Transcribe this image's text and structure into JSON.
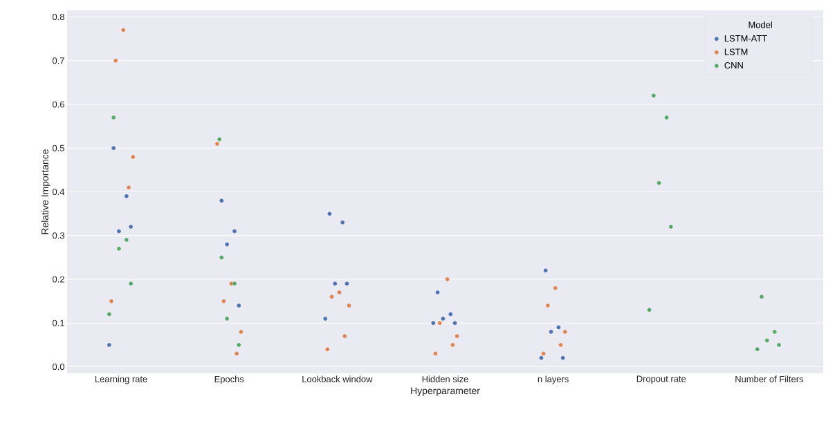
{
  "chart_data": {
    "type": "scatter",
    "xlabel": "Hyperparameter",
    "ylabel": "Relative Importance",
    "legend_title": "Model",
    "categories": [
      "Learning rate",
      "Epochs",
      "Lookback window",
      "Hidden size",
      "n layers",
      "Dropout rate",
      "Number of Filters"
    ],
    "ylim": [
      -0.015,
      0.815
    ],
    "yticks": [
      {
        "value": 0,
        "label": "0.0"
      },
      0.1,
      0.2,
      0.3,
      0.4,
      0.5,
      0.6,
      0.7,
      0.8
    ],
    "grid": "y",
    "legend": "top right",
    "marker": "circle",
    "series": [
      {
        "name": "LSTM-ATT",
        "color": "#4c72b0",
        "x": [
          "Learning rate",
          "Learning rate",
          "Learning rate",
          "Learning rate",
          "Learning rate",
          "Epochs",
          "Epochs",
          "Epochs",
          "Epochs",
          "Lookback window",
          "Lookback window",
          "Lookback window",
          "Lookback window",
          "Lookback window",
          "Hidden size",
          "Hidden size",
          "Hidden size",
          "Hidden size",
          "Hidden size",
          "n layers",
          "n layers",
          "n layers",
          "n layers",
          "n layers"
        ],
        "values": [
          0.5,
          0.39,
          0.31,
          0.32,
          0.05,
          0.38,
          0.31,
          0.28,
          0.14,
          0.35,
          0.33,
          0.19,
          0.19,
          0.11,
          0.17,
          0.12,
          0.11,
          0.1,
          0.1,
          0.22,
          0.09,
          0.08,
          0.02,
          0.02
        ]
      },
      {
        "name": "LSTM",
        "color": "#dd8452",
        "x": [
          "Learning rate",
          "Learning rate",
          "Learning rate",
          "Learning rate",
          "Learning rate",
          "Epochs",
          "Epochs",
          "Epochs",
          "Epochs",
          "Epochs",
          "Lookback window",
          "Lookback window",
          "Lookback window",
          "Lookback window",
          "Lookback window",
          "Hidden size",
          "Hidden size",
          "Hidden size",
          "Hidden size",
          "Hidden size",
          "n layers",
          "n layers",
          "n layers",
          "n layers",
          "n layers"
        ],
        "values": [
          0.77,
          0.7,
          0.48,
          0.41,
          0.15,
          0.51,
          0.19,
          0.15,
          0.08,
          0.03,
          0.17,
          0.16,
          0.14,
          0.07,
          0.04,
          0.2,
          0.1,
          0.07,
          0.05,
          0.03,
          0.18,
          0.14,
          0.08,
          0.05,
          0.03
        ]
      },
      {
        "name": "CNN",
        "color": "#55a868",
        "x": [
          "Learning rate",
          "Learning rate",
          "Learning rate",
          "Learning rate",
          "Learning rate",
          "Epochs",
          "Epochs",
          "Epochs",
          "Epochs",
          "Epochs",
          "Dropout rate",
          "Dropout rate",
          "Dropout rate",
          "Dropout rate",
          "Dropout rate",
          "Number of Filters",
          "Number of Filters",
          "Number of Filters",
          "Number of Filters",
          "Number of Filters"
        ],
        "values": [
          0.57,
          0.29,
          0.27,
          0.19,
          0.12,
          0.52,
          0.25,
          0.19,
          0.11,
          0.05,
          0.62,
          0.57,
          0.42,
          0.32,
          0.13,
          0.16,
          0.08,
          0.06,
          0.05,
          0.04
        ]
      }
    ]
  }
}
